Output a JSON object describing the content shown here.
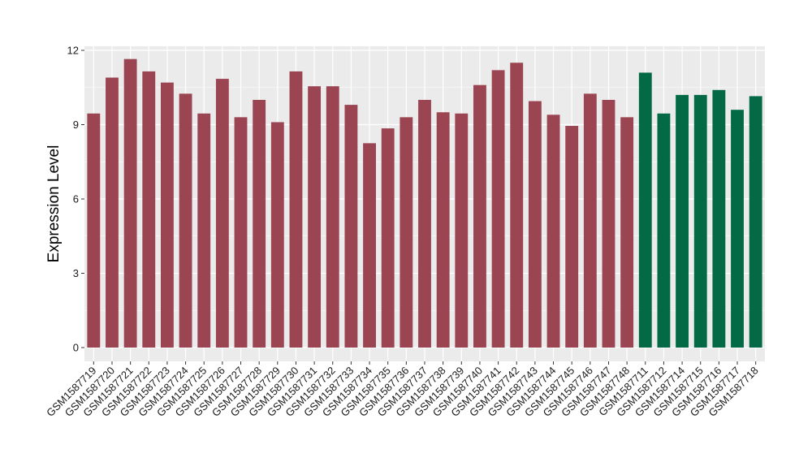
{
  "chart_data": {
    "type": "bar",
    "title": "",
    "xlabel": "",
    "ylabel": "Expression Level",
    "ylim": [
      0,
      12.5
    ],
    "yticks": [
      0,
      3,
      6,
      9,
      12
    ],
    "ytick_labels": [
      "0",
      "3",
      "6",
      "9",
      "12"
    ],
    "grid": true,
    "legend": "none",
    "colors": {
      "group_a": "#9b4452",
      "group_b": "#046a45",
      "panel_bg": "#ebebeb",
      "grid": "#ffffff"
    },
    "categories": [
      "GSM1587719",
      "GSM1587720",
      "GSM1587721",
      "GSM1587722",
      "GSM1587723",
      "GSM1587724",
      "GSM1587725",
      "GSM1587726",
      "GSM1587727",
      "GSM1587728",
      "GSM1587729",
      "GSM1587730",
      "GSM1587731",
      "GSM1587732",
      "GSM1587733",
      "GSM1587734",
      "GSM1587735",
      "GSM1587736",
      "GSM1587737",
      "GSM1587738",
      "GSM1587739",
      "GSM1587740",
      "GSM1587741",
      "GSM1587742",
      "GSM1587743",
      "GSM1587744",
      "GSM1587745",
      "GSM1587746",
      "GSM1587747",
      "GSM1587748",
      "GSM1587711",
      "GSM1587712",
      "GSM1587714",
      "GSM1587715",
      "GSM1587716",
      "GSM1587717",
      "GSM1587718"
    ],
    "values": [
      9.45,
      10.9,
      11.65,
      11.15,
      10.7,
      10.25,
      9.45,
      10.85,
      9.3,
      10.0,
      9.1,
      11.15,
      10.55,
      10.55,
      9.8,
      8.25,
      8.85,
      9.3,
      10.0,
      9.5,
      9.45,
      10.6,
      11.2,
      11.5,
      9.95,
      9.4,
      8.95,
      10.25,
      10.0,
      9.3,
      11.1,
      9.45,
      10.2,
      10.2,
      10.4,
      9.6,
      10.15
    ],
    "groups": [
      "a",
      "a",
      "a",
      "a",
      "a",
      "a",
      "a",
      "a",
      "a",
      "a",
      "a",
      "a",
      "a",
      "a",
      "a",
      "a",
      "a",
      "a",
      "a",
      "a",
      "a",
      "a",
      "a",
      "a",
      "a",
      "a",
      "a",
      "a",
      "a",
      "a",
      "b",
      "b",
      "b",
      "b",
      "b",
      "b",
      "b"
    ]
  }
}
